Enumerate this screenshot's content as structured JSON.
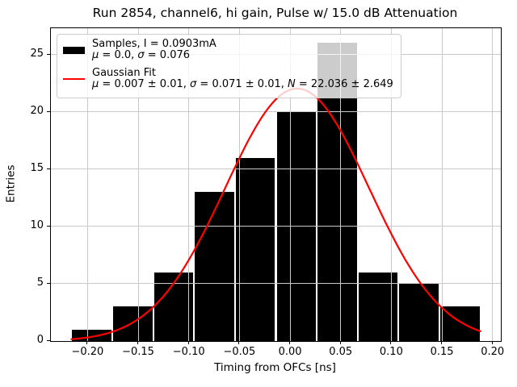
{
  "chart_data": {
    "type": "bar",
    "subtype": "histogram-with-gaussian-fit-overlay",
    "title": "Run 2854, channel6, hi gain, Pulse w/ 15.0 dB Attenuation",
    "xlabel": "Timing from OFCs [ns]",
    "ylabel": "Entries",
    "bin_edges": [
      -0.216,
      -0.1756,
      -0.1352,
      -0.0948,
      -0.0544,
      -0.014,
      0.0264,
      0.0668,
      0.1072,
      0.1476,
      0.188
    ],
    "counts": [
      1,
      3,
      6,
      13,
      16,
      20,
      26,
      6,
      5,
      3
    ],
    "xlim": [
      -0.2362,
      0.2082
    ],
    "ylim": [
      0,
      27.3
    ],
    "xticks": {
      "values": [
        -0.2,
        -0.15,
        -0.1,
        -0.05,
        0.0,
        0.05,
        0.1,
        0.15,
        0.2
      ],
      "labels": [
        "−0.20",
        "−0.15",
        "−0.10",
        "−0.05",
        "0.00",
        "0.05",
        "0.10",
        "0.15",
        "0.20"
      ]
    },
    "yticks": {
      "values": [
        0,
        5,
        10,
        15,
        20,
        25
      ],
      "labels": [
        "0",
        "5",
        "10",
        "15",
        "20",
        "25"
      ]
    },
    "grid": true,
    "grid_color": "#c9c9c9",
    "bar_color": "#000000",
    "bar_separator_color": "#ffffff",
    "fit": {
      "mu": 0.007,
      "sigma": 0.071,
      "amplitude": 22.036,
      "color": "#ff0000",
      "x_range": [
        -0.216,
        0.188
      ]
    },
    "legend": {
      "position": "upper left",
      "entries": [
        {
          "swatch_type": "rect",
          "swatch_color": "#000000",
          "lines": [
            "Samples, I = 0.0903mA",
            "μ = 0.0, σ = 0.076"
          ]
        },
        {
          "swatch_type": "line",
          "swatch_color": "#ff0000",
          "lines": [
            "Gaussian Fit",
            "μ = 0.007 ± 0.01, σ = 0.071 ± 0.01, N = 22.036 ± 2.649"
          ]
        }
      ]
    },
    "stats": {
      "samples_current_mA": 0.0903,
      "samples_mu": 0.0,
      "samples_sigma": 0.076,
      "fit_mu": 0.007,
      "fit_mu_err": 0.01,
      "fit_sigma": 0.071,
      "fit_sigma_err": 0.01,
      "fit_N": 22.036,
      "fit_N_err": 2.649
    }
  }
}
